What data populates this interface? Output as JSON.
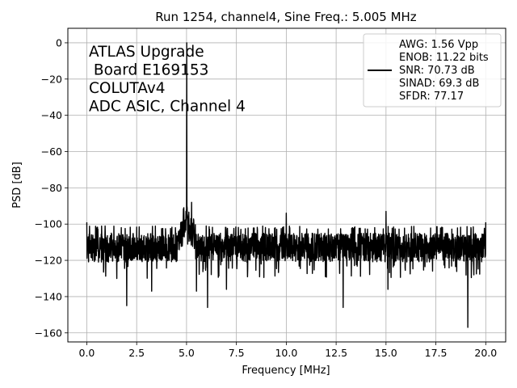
{
  "chart_data": {
    "type": "line",
    "title": "Run 1254, channel4, Sine Freq.: 5.005 MHz",
    "xlabel": "Frequency [MHz]",
    "ylabel": "PSD [dB]",
    "xlim": [
      -0.95,
      21.0
    ],
    "ylim": [
      -165,
      8
    ],
    "x_ticks": [
      0.0,
      2.5,
      5.0,
      7.5,
      10.0,
      12.5,
      15.0,
      17.5,
      20.0
    ],
    "x_tick_labels": [
      "0.0",
      "2.5",
      "5.0",
      "7.5",
      "10.0",
      "12.5",
      "15.0",
      "17.5",
      "20.0"
    ],
    "y_ticks": [
      0,
      -20,
      -40,
      -60,
      -80,
      -100,
      -120,
      -140,
      -160
    ],
    "y_tick_labels": [
      "0",
      "−20",
      "−40",
      "−60",
      "−80",
      "−100",
      "−120",
      "−140",
      "−160"
    ],
    "grid": true,
    "line_color": "#000000",
    "annotation_lines": [
      "ATLAS Upgrade",
      " Board E169153",
      "COLUTAv4",
      "ADC ASIC, Channel 4"
    ],
    "legend": {
      "placement": "top-right",
      "lines": [
        "AWG: 1.56 Vpp",
        "ENOB: 11.22 bits",
        "SNR: 70.73 dB",
        "SINAD: 69.3 dB",
        "SFDR: 77.17"
      ]
    },
    "series": [
      {
        "x_range": [
          0.0,
          20.0
        ],
        "noise_floor_db": -113,
        "noise_typical_range_db": [
          -122,
          -103
        ],
        "peaks": [
          {
            "x": 5.005,
            "y": 0
          },
          {
            "x": 0.0,
            "y": -99
          },
          {
            "x": 5.25,
            "y": -88
          },
          {
            "x": 10.0,
            "y": -94
          },
          {
            "x": 15.0,
            "y": -93
          },
          {
            "x": 20.0,
            "y": -99
          }
        ],
        "dips": [
          {
            "x": 2.0,
            "y": -145
          },
          {
            "x": 6.05,
            "y": -146
          },
          {
            "x": 12.85,
            "y": -146
          },
          {
            "x": 19.1,
            "y": -157
          },
          {
            "x": 5.5,
            "y": -137
          },
          {
            "x": 7.0,
            "y": -136
          },
          {
            "x": 10.0,
            "y": -134
          },
          {
            "x": 15.1,
            "y": -136
          },
          {
            "x": 3.25,
            "y": -137
          },
          {
            "x": 1.5,
            "y": -130
          },
          {
            "x": 0.0,
            "y": -128
          },
          {
            "x": 19.4,
            "y": -128
          }
        ]
      }
    ]
  }
}
